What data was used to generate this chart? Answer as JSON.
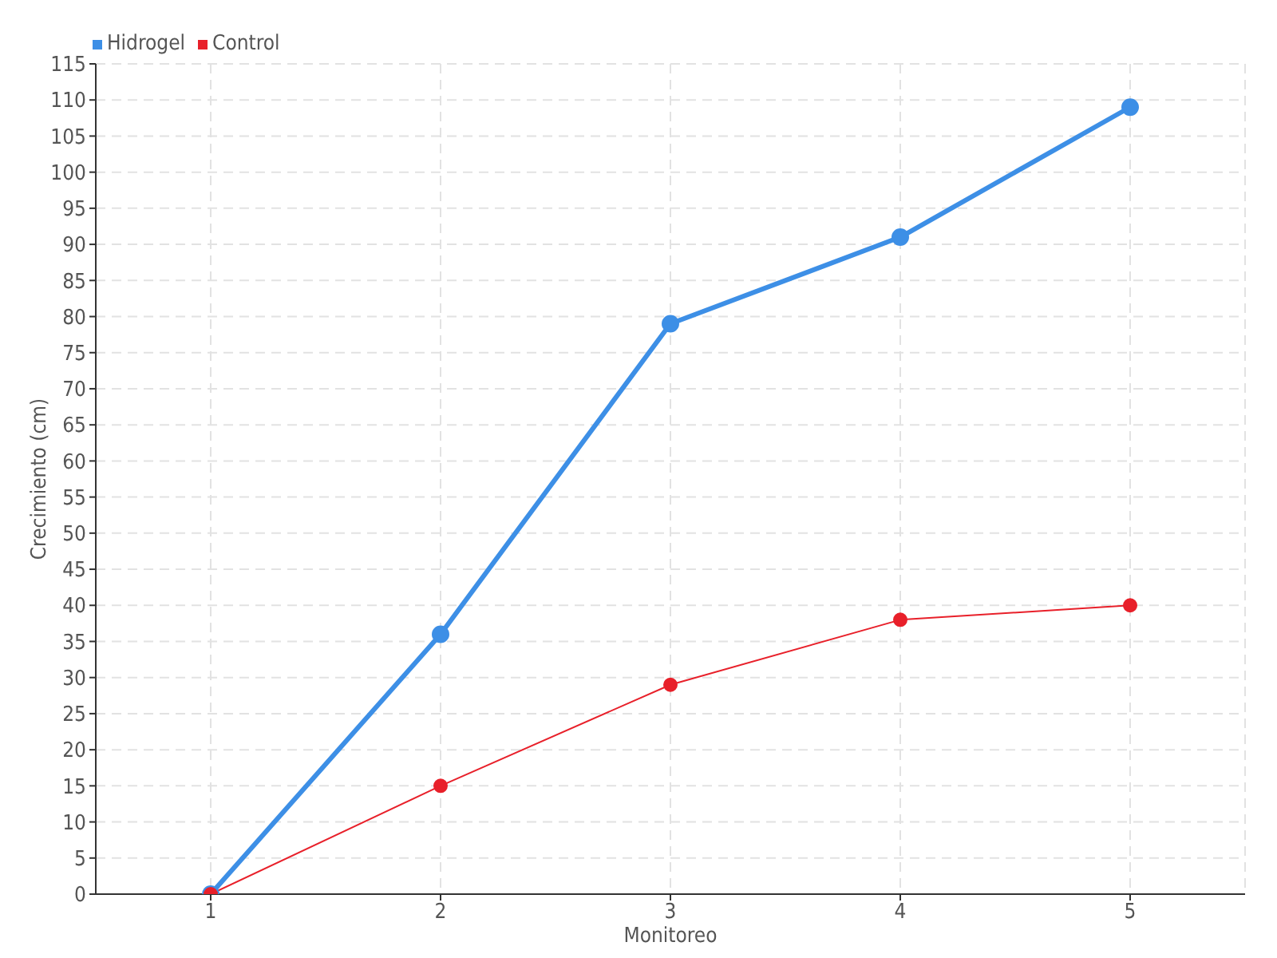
{
  "chart_data": {
    "type": "line",
    "xlabel": "Monitoreo",
    "ylabel": "Crecimiento (cm)",
    "categories": [
      "1",
      "2",
      "3",
      "4",
      "5"
    ],
    "series": [
      {
        "name": "Hidrogel",
        "color": "#3d8fe6",
        "values": [
          0,
          36,
          79,
          91,
          109
        ]
      },
      {
        "name": "Control",
        "color": "#e8202a",
        "values": [
          0,
          15,
          29,
          38,
          40
        ]
      }
    ],
    "ylim": [
      0,
      115
    ],
    "yticks": [
      0,
      5,
      10,
      15,
      20,
      25,
      30,
      35,
      40,
      45,
      50,
      55,
      60,
      65,
      70,
      75,
      80,
      85,
      90,
      95,
      100,
      105,
      110,
      115
    ],
    "grid": true,
    "legend": "top left",
    "marker": "circle",
    "line_style": "solid"
  }
}
